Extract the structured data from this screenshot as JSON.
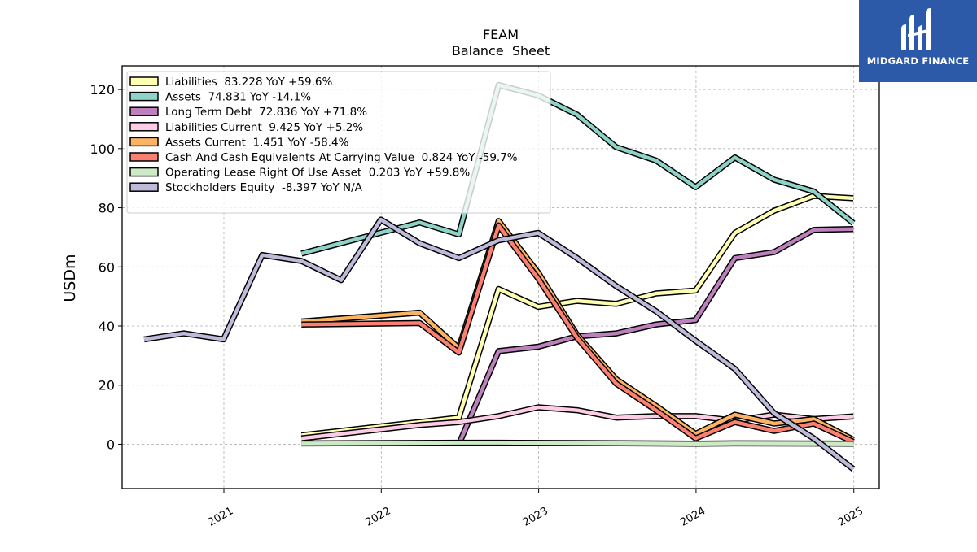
{
  "chart_data": {
    "type": "line",
    "title": "FEAM",
    "subtitle": "Balance  Sheet",
    "ylabel": "USDm",
    "xlabel": "",
    "x_ticks": [
      "2021",
      "2022",
      "2023",
      "2024",
      "2025"
    ],
    "y_ticks": [
      "0",
      "20",
      "40",
      "60",
      "80",
      "100",
      "120"
    ],
    "ylim": [
      -15,
      128
    ],
    "xlim": [
      "2020-05-10",
      "2025-03-01"
    ],
    "grid": true,
    "legend_position": "top-left",
    "series": [
      {
        "name": "Liabilities",
        "legend": "Liabilities  83.228 YoY +59.6%",
        "color": "#ffffb3",
        "points": [
          [
            "2021-06-30",
            3.0
          ],
          [
            "2022-03-31",
            7.5
          ],
          [
            "2022-06-30",
            9.0
          ],
          [
            "2022-09-30",
            52.5
          ],
          [
            "2022-12-31",
            46.5
          ],
          [
            "2023-03-31",
            48.5
          ],
          [
            "2023-06-30",
            47.5
          ],
          [
            "2023-09-30",
            51.0
          ],
          [
            "2023-12-31",
            52.0
          ],
          [
            "2024-03-31",
            71.5
          ],
          [
            "2024-06-30",
            79.0
          ],
          [
            "2024-09-30",
            84.0
          ],
          [
            "2024-12-31",
            83.2
          ]
        ]
      },
      {
        "name": "Assets",
        "legend": "Assets  74.831 YoY -14.1%",
        "color": "#8dd3c7",
        "points": [
          [
            "2021-06-30",
            64.5
          ],
          [
            "2022-03-31",
            75.0
          ],
          [
            "2022-06-30",
            71.0
          ],
          [
            "2022-09-30",
            121.5
          ],
          [
            "2022-12-31",
            118.0
          ],
          [
            "2023-03-31",
            111.5
          ],
          [
            "2023-06-30",
            100.5
          ],
          [
            "2023-09-30",
            96.0
          ],
          [
            "2023-12-31",
            87.0
          ],
          [
            "2024-03-31",
            97.0
          ],
          [
            "2024-06-30",
            89.5
          ],
          [
            "2024-09-30",
            85.5
          ],
          [
            "2024-12-31",
            74.8
          ]
        ]
      },
      {
        "name": "Long Term Debt",
        "legend": "Long Term Debt  72.836 YoY +71.8%",
        "color": "#bc80bd",
        "points": [
          [
            "2022-06-30",
            0.0
          ],
          [
            "2022-09-30",
            31.5
          ],
          [
            "2022-12-31",
            33.0
          ],
          [
            "2023-03-31",
            36.5
          ],
          [
            "2023-06-30",
            37.5
          ],
          [
            "2023-09-30",
            40.5
          ],
          [
            "2023-12-31",
            42.0
          ],
          [
            "2024-03-31",
            63.0
          ],
          [
            "2024-06-30",
            65.0
          ],
          [
            "2024-09-30",
            72.5
          ],
          [
            "2024-12-31",
            72.8
          ]
        ]
      },
      {
        "name": "Liabilities Current",
        "legend": "Liabilities Current  9.425 YoY +5.2%",
        "color": "#fccde5",
        "points": [
          [
            "2021-06-30",
            2.0
          ],
          [
            "2022-03-31",
            6.5
          ],
          [
            "2022-06-30",
            7.5
          ],
          [
            "2022-09-30",
            9.5
          ],
          [
            "2022-12-31",
            12.5
          ],
          [
            "2023-03-31",
            11.5
          ],
          [
            "2023-06-30",
            9.0
          ],
          [
            "2023-09-30",
            9.5
          ],
          [
            "2023-12-31",
            9.5
          ],
          [
            "2024-03-31",
            8.0
          ],
          [
            "2024-06-30",
            10.0
          ],
          [
            "2024-09-30",
            8.5
          ],
          [
            "2024-12-31",
            9.4
          ]
        ]
      },
      {
        "name": "Assets Current",
        "legend": "Assets Current  1.451 YoY -58.4%",
        "color": "#fdb462",
        "points": [
          [
            "2021-06-30",
            41.5
          ],
          [
            "2022-03-31",
            44.5
          ],
          [
            "2022-06-30",
            32.5
          ],
          [
            "2022-09-30",
            75.5
          ],
          [
            "2022-12-31",
            58.0
          ],
          [
            "2023-03-31",
            37.0
          ],
          [
            "2023-06-30",
            22.0
          ],
          [
            "2023-09-30",
            13.0
          ],
          [
            "2023-12-31",
            3.5
          ],
          [
            "2024-03-31",
            10.0
          ],
          [
            "2024-06-30",
            7.0
          ],
          [
            "2024-09-30",
            8.5
          ],
          [
            "2024-12-31",
            1.5
          ]
        ]
      },
      {
        "name": "Cash And Cash Equivalents At Carrying Value",
        "legend": "Cash And Cash Equivalents At Carrying Value  0.824 YoY -59.7%",
        "color": "#fb8072",
        "points": [
          [
            "2021-06-30",
            40.5
          ],
          [
            "2022-03-31",
            41.0
          ],
          [
            "2022-06-30",
            31.0
          ],
          [
            "2022-09-30",
            74.0
          ],
          [
            "2022-12-31",
            56.0
          ],
          [
            "2023-03-31",
            36.0
          ],
          [
            "2023-06-30",
            20.5
          ],
          [
            "2023-09-30",
            11.5
          ],
          [
            "2023-12-31",
            2.0
          ],
          [
            "2024-03-31",
            7.5
          ],
          [
            "2024-06-30",
            4.5
          ],
          [
            "2024-09-30",
            7.0
          ],
          [
            "2024-12-31",
            0.8
          ]
        ]
      },
      {
        "name": "Operating Lease Right Of Use Asset",
        "legend": "Operating Lease Right Of Use Asset  0.203 YoY +59.8%",
        "color": "#ccebc5",
        "points": [
          [
            "2021-06-30",
            0.3
          ],
          [
            "2022-06-30",
            0.5
          ],
          [
            "2022-09-30",
            0.5
          ],
          [
            "2023-03-31",
            0.4
          ],
          [
            "2023-12-31",
            0.2
          ],
          [
            "2024-03-31",
            0.3
          ],
          [
            "2024-12-31",
            0.2
          ]
        ]
      },
      {
        "name": "Stockholders Equity",
        "legend": "Stockholders Equity  -8.397 YoY N/A",
        "color": "#bebada",
        "points": [
          [
            "2020-06-30",
            35.5
          ],
          [
            "2020-09-30",
            37.5
          ],
          [
            "2020-12-31",
            35.5
          ],
          [
            "2021-03-31",
            64.0
          ],
          [
            "2021-06-30",
            62.0
          ],
          [
            "2021-09-30",
            55.5
          ],
          [
            "2021-12-31",
            76.0
          ],
          [
            "2022-03-31",
            68.0
          ],
          [
            "2022-06-30",
            63.0
          ],
          [
            "2022-09-30",
            69.0
          ],
          [
            "2022-12-31",
            71.5
          ],
          [
            "2023-03-31",
            63.0
          ],
          [
            "2023-06-30",
            53.5
          ],
          [
            "2023-09-30",
            45.0
          ],
          [
            "2023-12-31",
            35.0
          ],
          [
            "2024-03-31",
            25.5
          ],
          [
            "2024-06-30",
            10.5
          ],
          [
            "2024-09-30",
            2.0
          ],
          [
            "2024-12-31",
            -8.4
          ]
        ]
      }
    ]
  },
  "branding": {
    "logo_text": "MIDGARD FINANCE",
    "logo_icon": "midgard-logo-icon",
    "logo_bg": "#2d5aa8"
  }
}
